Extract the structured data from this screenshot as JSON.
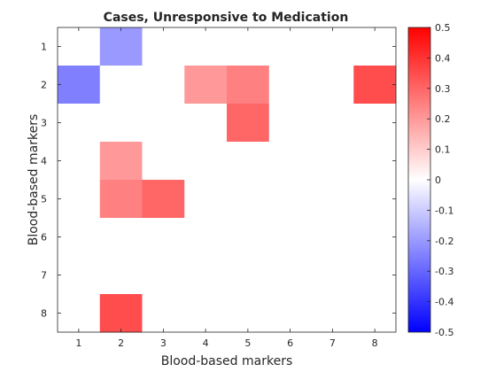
{
  "chart_data": {
    "type": "heatmap",
    "title": "Cases, Unresponsive to Medication",
    "xlabel": "Blood-based markers",
    "ylabel": "Blood-based markers",
    "x_categories": [
      "1",
      "2",
      "3",
      "4",
      "5",
      "6",
      "7",
      "8"
    ],
    "y_categories": [
      "1",
      "2",
      "3",
      "4",
      "5",
      "6",
      "7",
      "8"
    ],
    "values": [
      [
        0,
        -0.2,
        0,
        0,
        0,
        0,
        0,
        0
      ],
      [
        -0.25,
        0,
        0,
        0.2,
        0.25,
        0,
        0,
        0.35
      ],
      [
        0,
        0,
        0,
        0,
        0.3,
        0,
        0,
        0
      ],
      [
        0,
        0.2,
        0,
        0,
        0,
        0,
        0,
        0
      ],
      [
        0,
        0.25,
        0.3,
        0,
        0,
        0,
        0,
        0
      ],
      [
        0,
        0,
        0,
        0,
        0,
        0,
        0,
        0
      ],
      [
        0,
        0,
        0,
        0,
        0,
        0,
        0,
        0
      ],
      [
        0,
        0.35,
        0,
        0,
        0,
        0,
        0,
        0
      ]
    ],
    "colorbar": {
      "range": [
        -0.5,
        0.5
      ],
      "ticks": [
        "-0.5",
        "-0.4",
        "-0.3",
        "-0.2",
        "-0.1",
        "0",
        "0.1",
        "0.2",
        "0.3",
        "0.4",
        "0.5"
      ],
      "colormap": "blue-white-red"
    },
    "colors": {
      "negative": "#0000ff",
      "neutral": "#ffffff",
      "positive": "#ff0000"
    },
    "grid": false
  }
}
